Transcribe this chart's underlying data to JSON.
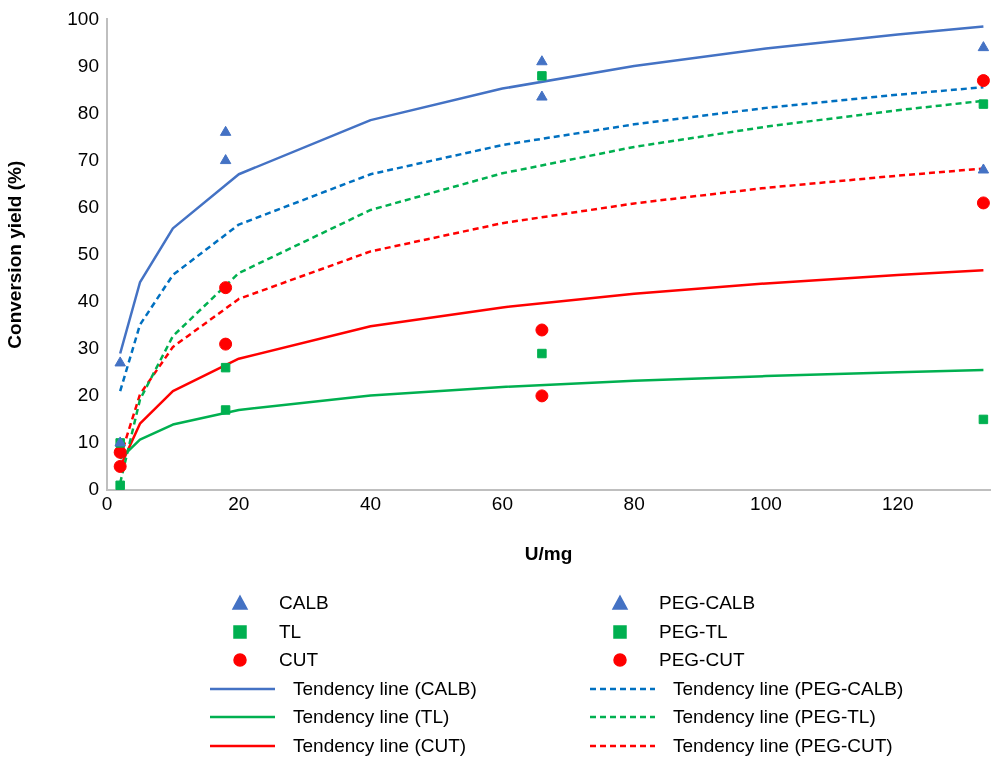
{
  "chart_data": {
    "type": "scatter",
    "xlabel": "U/mg",
    "ylabel": "Conversion yield (%)",
    "x": [
      2,
      18,
      66,
      133
    ],
    "xlim": [
      0,
      134
    ],
    "xticks": [
      0,
      20,
      40,
      60,
      80,
      100,
      120
    ],
    "ylim": [
      0,
      100
    ],
    "yticks": [
      0,
      10,
      20,
      30,
      40,
      50,
      60,
      70,
      80,
      90,
      100
    ],
    "grid": false,
    "legend": "bottom",
    "series": [
      {
        "name": "CALB",
        "color": "#4472c4",
        "marker": "triangle",
        "values": [
          27,
          70,
          91,
          94
        ]
      },
      {
        "name": "PEG-CALB",
        "color": "#4472c4",
        "marker": "triangle",
        "values": [
          10,
          76,
          83.5,
          68
        ]
      },
      {
        "name": "TL",
        "color": "#00b050",
        "marker": "square",
        "values": [
          1,
          26,
          29,
          15
        ]
      },
      {
        "name": "PEG-TL",
        "color": "#00b050",
        "marker": "square",
        "values": [
          10,
          17,
          88,
          82
        ]
      },
      {
        "name": "CUT",
        "color": "#ff0000",
        "marker": "circle",
        "values": [
          5,
          31,
          20,
          61
        ]
      },
      {
        "name": "PEG-CUT",
        "color": "#ff0000",
        "marker": "circle",
        "values": [
          8,
          43,
          34,
          87
        ]
      },
      {
        "name": "Tendency line (CALB)",
        "type": "line",
        "color": "#4472c4",
        "marker": "none",
        "line_style": "solid",
        "x": [
          2,
          5,
          10,
          20,
          40,
          60,
          80,
          100,
          120,
          133
        ],
        "values": [
          29,
          44.1,
          55.6,
          67.1,
          78.6,
          85.3,
          90.1,
          93.8,
          96.8,
          98.5
        ]
      },
      {
        "name": "Tendency line (PEG-CALB)",
        "type": "line",
        "color": "#0070c0",
        "marker": "none",
        "line_style": "dashed",
        "x": [
          2,
          5,
          10,
          20,
          40,
          60,
          80,
          100,
          120,
          133
        ],
        "values": [
          21,
          35.1,
          45.7,
          56.4,
          67.1,
          73.3,
          77.7,
          81.2,
          84,
          85.6
        ]
      },
      {
        "name": "Tendency line (TL)",
        "type": "line",
        "color": "#00b050",
        "marker": "none",
        "line_style": "solid",
        "x": [
          2,
          5,
          10,
          20,
          40,
          60,
          80,
          100,
          120,
          133
        ],
        "values": [
          6.6,
          10.7,
          13.9,
          17,
          20.1,
          21.9,
          23.2,
          24.2,
          25,
          25.5
        ]
      },
      {
        "name": "Tendency line (PEG-TL)",
        "type": "line",
        "color": "#00b050",
        "marker": "none",
        "line_style": "dashed",
        "x": [
          2,
          5,
          10,
          20,
          40,
          60,
          80,
          100,
          120,
          133
        ],
        "values": [
          1.5,
          19.2,
          32.7,
          46.1,
          59.5,
          67.3,
          72.9,
          77.2,
          80.7,
          82.7
        ]
      },
      {
        "name": "Tendency line (CUT)",
        "type": "line",
        "color": "#ff0000",
        "marker": "none",
        "line_style": "solid",
        "x": [
          2,
          5,
          10,
          20,
          40,
          60,
          80,
          100,
          120,
          133
        ],
        "values": [
          4.9,
          14.1,
          21,
          27.9,
          34.8,
          38.8,
          41.7,
          43.9,
          45.7,
          46.7
        ]
      },
      {
        "name": "Tendency line (PEG-CUT)",
        "type": "line",
        "color": "#ff0000",
        "marker": "none",
        "line_style": "dashed",
        "x": [
          2,
          5,
          10,
          20,
          40,
          60,
          80,
          100,
          120,
          133
        ],
        "values": [
          6.9,
          20.3,
          30.4,
          40.6,
          50.7,
          56.7,
          60.9,
          64.2,
          66.8,
          68.3
        ]
      }
    ]
  }
}
